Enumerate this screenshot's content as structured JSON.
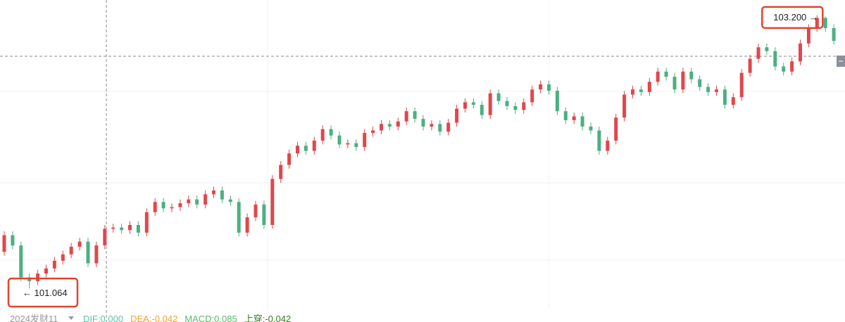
{
  "chart_data": {
    "type": "candlestick",
    "ylim": [
      100.9,
      103.32
    ],
    "up_color": "#e0474c",
    "down_color": "#4caf82",
    "open": [
      101.35,
      101.48,
      101.4,
      101.15,
      101.12,
      101.18,
      101.22,
      101.28,
      101.33,
      101.39,
      101.43,
      101.26,
      101.4,
      101.53,
      101.54,
      101.52,
      101.56,
      101.5,
      101.66,
      101.74,
      101.69,
      101.7,
      101.73,
      101.76,
      101.72,
      101.8,
      101.83,
      101.76,
      101.74,
      101.5,
      101.62,
      101.72,
      101.56,
      101.92,
      102.03,
      102.12,
      102.18,
      102.14,
      102.22,
      102.31,
      102.26,
      102.19,
      102.2,
      102.17,
      102.28,
      102.3,
      102.35,
      102.33,
      102.37,
      102.45,
      102.39,
      102.33,
      102.35,
      102.29,
      102.36,
      102.47,
      102.52,
      102.5,
      102.42,
      102.59,
      102.53,
      102.49,
      102.46,
      102.52,
      102.62,
      102.66,
      102.61,
      102.45,
      102.38,
      102.41,
      102.33,
      102.3,
      102.14,
      102.22,
      102.4,
      102.58,
      102.62,
      102.6,
      102.68,
      102.76,
      102.72,
      102.62,
      102.76,
      102.7,
      102.64,
      102.6,
      102.62,
      102.5,
      102.56,
      102.75,
      102.86,
      102.95,
      102.92,
      102.8,
      102.76,
      102.84,
      102.98,
      103.1,
      103.18,
      103.1
    ],
    "high": [
      101.51,
      101.51,
      101.43,
      101.18,
      101.21,
      101.25,
      101.31,
      101.36,
      101.42,
      101.46,
      101.46,
      101.43,
      101.56,
      101.57,
      101.57,
      101.59,
      101.59,
      101.69,
      101.77,
      101.77,
      101.73,
      101.76,
      101.79,
      101.79,
      101.83,
      101.86,
      101.86,
      101.79,
      101.77,
      101.65,
      101.75,
      101.75,
      101.95,
      102.06,
      102.15,
      102.21,
      102.21,
      102.25,
      102.34,
      102.34,
      102.29,
      102.23,
      102.23,
      102.31,
      102.33,
      102.38,
      102.38,
      102.4,
      102.48,
      102.48,
      102.42,
      102.38,
      102.38,
      102.39,
      102.5,
      102.55,
      102.55,
      102.53,
      102.62,
      102.62,
      102.56,
      102.52,
      102.55,
      102.65,
      102.69,
      102.69,
      102.64,
      102.48,
      102.44,
      102.44,
      102.36,
      102.33,
      102.25,
      102.43,
      102.61,
      102.65,
      102.65,
      102.71,
      102.79,
      102.79,
      102.75,
      102.79,
      102.79,
      102.73,
      102.67,
      102.65,
      102.65,
      102.59,
      102.78,
      102.89,
      102.98,
      102.98,
      102.95,
      102.83,
      102.87,
      103.01,
      103.13,
      103.2,
      103.19,
      103.13
    ],
    "low": [
      101.32,
      101.37,
      101.12,
      101.064,
      101.09,
      101.15,
      101.19,
      101.25,
      101.3,
      101.36,
      101.23,
      101.23,
      101.37,
      101.5,
      101.49,
      101.49,
      101.47,
      101.47,
      101.63,
      101.66,
      101.66,
      101.67,
      101.7,
      101.69,
      101.69,
      101.77,
      101.73,
      101.71,
      101.47,
      101.47,
      101.59,
      101.53,
      101.53,
      101.89,
      102.0,
      102.09,
      102.11,
      102.11,
      102.19,
      102.23,
      102.16,
      102.16,
      102.14,
      102.14,
      102.25,
      102.27,
      102.3,
      102.3,
      102.34,
      102.36,
      102.3,
      102.3,
      102.26,
      102.26,
      102.33,
      102.44,
      102.47,
      102.39,
      102.39,
      102.5,
      102.46,
      102.43,
      102.43,
      102.49,
      102.59,
      102.58,
      102.42,
      102.35,
      102.35,
      102.3,
      102.27,
      102.11,
      102.11,
      102.19,
      102.37,
      102.55,
      102.57,
      102.57,
      102.65,
      102.69,
      102.59,
      102.59,
      102.67,
      102.61,
      102.57,
      102.57,
      102.47,
      102.47,
      102.53,
      102.72,
      102.83,
      102.89,
      102.77,
      102.73,
      102.73,
      102.81,
      102.95,
      103.07,
      103.07,
      102.97
    ],
    "close": [
      101.48,
      101.4,
      101.15,
      101.12,
      101.18,
      101.22,
      101.28,
      101.33,
      101.39,
      101.43,
      101.26,
      101.4,
      101.53,
      101.54,
      101.52,
      101.56,
      101.5,
      101.66,
      101.74,
      101.69,
      101.7,
      101.73,
      101.76,
      101.72,
      101.8,
      101.83,
      101.76,
      101.74,
      101.5,
      101.62,
      101.72,
      101.56,
      101.92,
      102.03,
      102.12,
      102.18,
      102.14,
      102.22,
      102.31,
      102.26,
      102.19,
      102.2,
      102.17,
      102.28,
      102.3,
      102.35,
      102.33,
      102.37,
      102.45,
      102.39,
      102.33,
      102.35,
      102.29,
      102.36,
      102.47,
      102.52,
      102.5,
      102.42,
      102.59,
      102.53,
      102.49,
      102.46,
      102.52,
      102.62,
      102.66,
      102.61,
      102.45,
      102.38,
      102.41,
      102.33,
      102.3,
      102.14,
      102.22,
      102.4,
      102.58,
      102.62,
      102.6,
      102.68,
      102.76,
      102.72,
      102.62,
      102.76,
      102.7,
      102.64,
      102.6,
      102.62,
      102.5,
      102.56,
      102.75,
      102.86,
      102.95,
      102.92,
      102.8,
      102.76,
      102.84,
      102.98,
      103.1,
      103.18,
      103.1,
      103.0
    ],
    "annotations": [
      {
        "label": "103.200 →",
        "value": 103.2,
        "index": 97
      },
      {
        "label": "← 101.064",
        "value": 101.064,
        "index": 3
      }
    ],
    "indicator_bar": {
      "name": "2024发财11",
      "items": [
        {
          "text": "DIF:0.000",
          "color": "#5fc0a8"
        },
        {
          "text": "DEA:-0.042",
          "color": "#f0a030"
        },
        {
          "text": "MACD:0.085",
          "color": "#5cb86a"
        },
        {
          "text": "上穿:-0.042",
          "color": "#3a7a20"
        }
      ]
    }
  }
}
